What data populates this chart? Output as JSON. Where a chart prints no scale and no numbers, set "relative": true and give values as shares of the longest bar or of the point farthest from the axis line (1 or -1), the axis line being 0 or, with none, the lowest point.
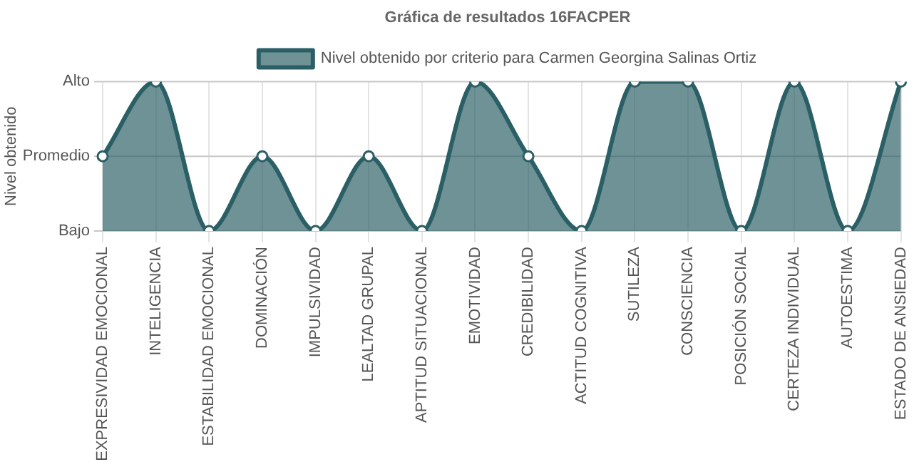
{
  "chart_data": {
    "type": "area",
    "title": "Gráfica de resultados 16FACPER",
    "ylabel": "Nivel obtenido",
    "categories": [
      "EXPRESIVIDAD EMOCIONAL",
      "INTELIGENCIA",
      "ESTABILIDAD EMOCIONAL",
      "DOMINACIÓN",
      "IMPULSIVIDAD",
      "LEALTAD GRUPAL",
      "APTITUD SITUACIONAL",
      "EMOTIVIDAD",
      "CREDIBILIDAD",
      "ACTITUD COGNITIVA",
      "SUTILEZA",
      "CONSCIENCIA",
      "POSICIÓN SOCIAL",
      "CERTEZA INDIVIDUAL",
      "AUTOESTIMA",
      "ESTADO DE ANSIEDAD"
    ],
    "series": [
      {
        "name": "Nivel obtenido por criterio para Carmen Georgina Salinas Ortiz",
        "color": "#2b5f66",
        "values": [
          0.5,
          1,
          0,
          0.5,
          0,
          0.5,
          0,
          1,
          0.5,
          0,
          1,
          1,
          0,
          1,
          0,
          1
        ]
      }
    ],
    "relative": true,
    "ref_lines": [
      {
        "axis": "y",
        "value": 0,
        "label": "Bajo"
      },
      {
        "axis": "y",
        "value": 0.5,
        "label": "Promedio"
      },
      {
        "axis": "y",
        "value": 1,
        "label": "Alto"
      }
    ],
    "grid": "x",
    "legend": "top",
    "marker": "circle",
    "line_style": "solid"
  }
}
